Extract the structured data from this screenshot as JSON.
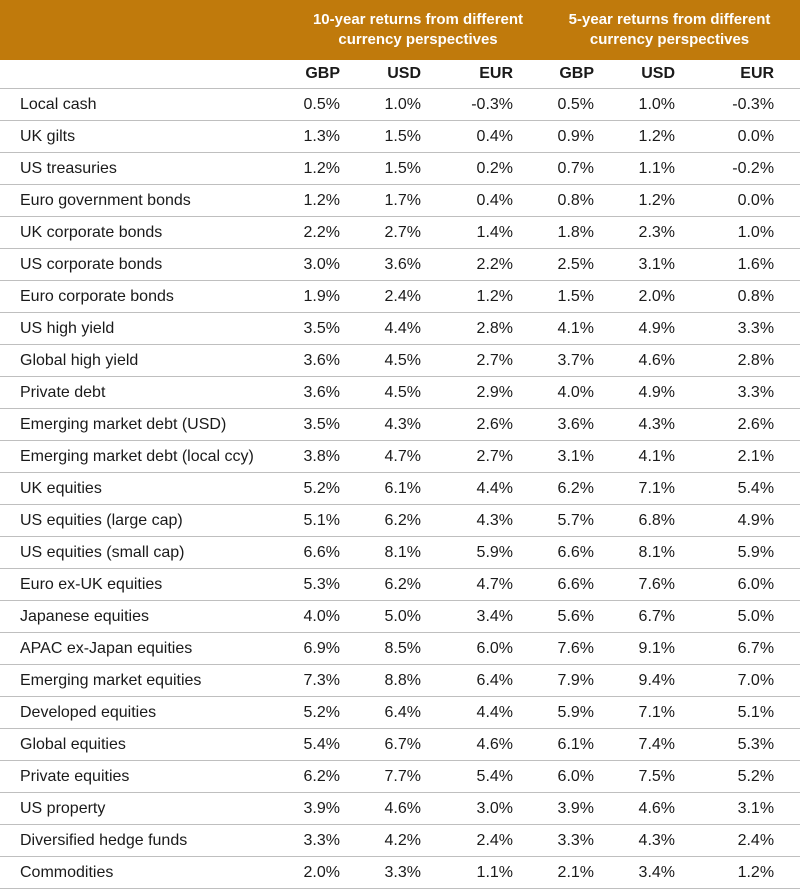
{
  "header": {
    "group_10y": "10-year returns from different currency perspectives",
    "group_5y": "5-year returns from different currency perspectives",
    "currencies": [
      "GBP",
      "USD",
      "EUR",
      "GBP",
      "USD",
      "EUR"
    ]
  },
  "colors": {
    "header_bg": "#c07a0c",
    "header_text": "#ffffff",
    "rule": "#bfbfbf"
  },
  "rows": [
    {
      "label": "Local cash",
      "values": [
        "0.5%",
        "1.0%",
        "-0.3%",
        "0.5%",
        "1.0%",
        "-0.3%"
      ]
    },
    {
      "label": "UK gilts",
      "values": [
        "1.3%",
        "1.5%",
        "0.4%",
        "0.9%",
        "1.2%",
        "0.0%"
      ]
    },
    {
      "label": "US treasuries",
      "values": [
        "1.2%",
        "1.5%",
        "0.2%",
        "0.7%",
        "1.1%",
        "-0.2%"
      ]
    },
    {
      "label": "Euro government bonds",
      "values": [
        "1.2%",
        "1.7%",
        "0.4%",
        "0.8%",
        "1.2%",
        "0.0%"
      ]
    },
    {
      "label": "UK corporate bonds",
      "values": [
        "2.2%",
        "2.7%",
        "1.4%",
        "1.8%",
        "2.3%",
        "1.0%"
      ]
    },
    {
      "label": "US corporate bonds",
      "values": [
        "3.0%",
        "3.6%",
        "2.2%",
        "2.5%",
        "3.1%",
        "1.6%"
      ]
    },
    {
      "label": "Euro corporate bonds",
      "values": [
        "1.9%",
        "2.4%",
        "1.2%",
        "1.5%",
        "2.0%",
        "0.8%"
      ]
    },
    {
      "label": "US high yield",
      "values": [
        "3.5%",
        "4.4%",
        "2.8%",
        "4.1%",
        "4.9%",
        "3.3%"
      ]
    },
    {
      "label": "Global high yield",
      "values": [
        "3.6%",
        "4.5%",
        "2.7%",
        "3.7%",
        "4.6%",
        "2.8%"
      ]
    },
    {
      "label": "Private debt",
      "values": [
        "3.6%",
        "4.5%",
        "2.9%",
        "4.0%",
        "4.9%",
        "3.3%"
      ]
    },
    {
      "label": "Emerging market debt (USD)",
      "values": [
        "3.5%",
        "4.3%",
        "2.6%",
        "3.6%",
        "4.3%",
        "2.6%"
      ]
    },
    {
      "label": "Emerging market debt (local ccy)",
      "values": [
        "3.8%",
        "4.7%",
        "2.7%",
        "3.1%",
        "4.1%",
        "2.1%"
      ]
    },
    {
      "label": "UK equities",
      "values": [
        "5.2%",
        "6.1%",
        "4.4%",
        "6.2%",
        "7.1%",
        "5.4%"
      ]
    },
    {
      "label": "US equities (large cap)",
      "values": [
        "5.1%",
        "6.2%",
        "4.3%",
        "5.7%",
        "6.8%",
        "4.9%"
      ]
    },
    {
      "label": "US equities (small cap)",
      "values": [
        "6.6%",
        "8.1%",
        "5.9%",
        "6.6%",
        "8.1%",
        "5.9%"
      ]
    },
    {
      "label": "Euro ex-UK equities",
      "values": [
        "5.3%",
        "6.2%",
        "4.7%",
        "6.6%",
        "7.6%",
        "6.0%"
      ]
    },
    {
      "label": "Japanese equities",
      "values": [
        "4.0%",
        "5.0%",
        "3.4%",
        "5.6%",
        "6.7%",
        "5.0%"
      ]
    },
    {
      "label": "APAC ex-Japan equities",
      "values": [
        "6.9%",
        "8.5%",
        "6.0%",
        "7.6%",
        "9.1%",
        "6.7%"
      ]
    },
    {
      "label": "Emerging market equities",
      "values": [
        "7.3%",
        "8.8%",
        "6.4%",
        "7.9%",
        "9.4%",
        "7.0%"
      ]
    },
    {
      "label": "Developed equities",
      "values": [
        "5.2%",
        "6.4%",
        "4.4%",
        "5.9%",
        "7.1%",
        "5.1%"
      ]
    },
    {
      "label": "Global equities",
      "values": [
        "5.4%",
        "6.7%",
        "4.6%",
        "6.1%",
        "7.4%",
        "5.3%"
      ]
    },
    {
      "label": "Private equities",
      "values": [
        "6.2%",
        "7.7%",
        "5.4%",
        "6.0%",
        "7.5%",
        "5.2%"
      ]
    },
    {
      "label": "US property",
      "values": [
        "3.9%",
        "4.6%",
        "3.0%",
        "3.9%",
        "4.6%",
        "3.1%"
      ]
    },
    {
      "label": "Diversified hedge funds",
      "values": [
        "3.3%",
        "4.2%",
        "2.4%",
        "3.3%",
        "4.3%",
        "2.4%"
      ]
    },
    {
      "label": "Commodities",
      "values": [
        "2.0%",
        "3.3%",
        "1.1%",
        "2.1%",
        "3.4%",
        "1.2%"
      ]
    }
  ]
}
